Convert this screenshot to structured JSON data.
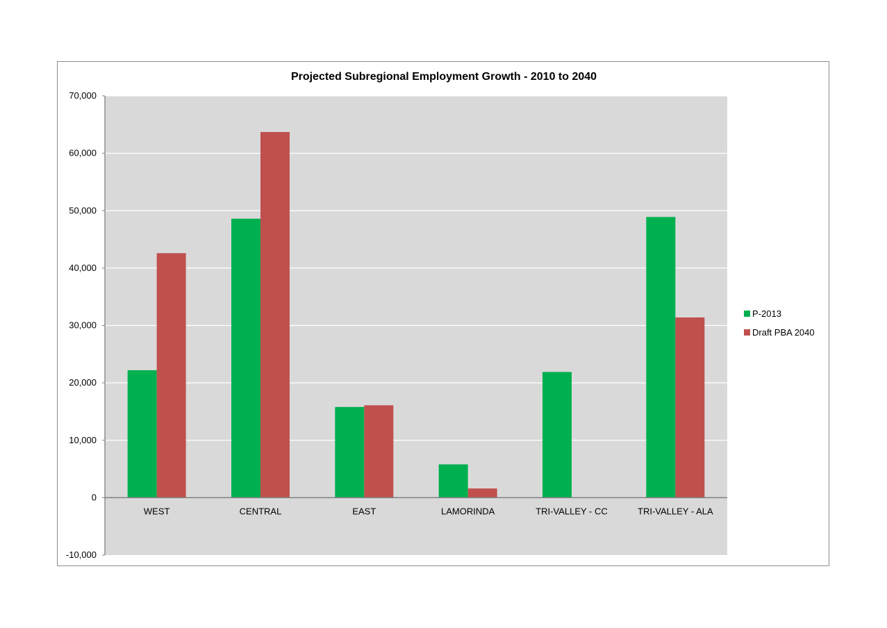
{
  "chart_data": {
    "type": "bar",
    "title": "Projected Subregional Employment Growth - 2010 to 2040",
    "xlabel": "",
    "ylabel": "",
    "categories": [
      "WEST",
      "CENTRAL",
      "EAST",
      "LAMORINDA",
      "TRI-VALLEY - CC",
      "TRI-VALLEY - ALA"
    ],
    "series": [
      {
        "name": "P-2013",
        "color": "#00b050",
        "values": [
          22200,
          48600,
          15800,
          5800,
          21900,
          48900
        ]
      },
      {
        "name": "Draft PBA 2040",
        "color": "#c0504d",
        "values": [
          42600,
          63700,
          16100,
          1600,
          0,
          31400
        ]
      }
    ],
    "ylim": [
      -10000,
      70000
    ],
    "yticks": [
      -10000,
      0,
      10000,
      20000,
      30000,
      40000,
      50000,
      60000,
      70000
    ],
    "ytick_labels": [
      "-10,000",
      "0",
      "10,000",
      "20,000",
      "30,000",
      "40,000",
      "50,000",
      "60,000",
      "70,000"
    ],
    "grid": true,
    "plot_background": "#d9d9d9",
    "legend_position": "right"
  }
}
